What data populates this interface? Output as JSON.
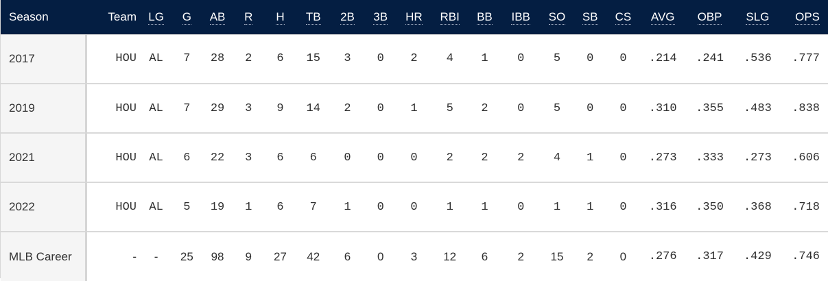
{
  "header": {
    "season": "Season",
    "team": "Team",
    "lg": "LG",
    "g": "G",
    "ab": "AB",
    "r": "R",
    "h": "H",
    "tb": "TB",
    "2b": "2B",
    "3b": "3B",
    "hr": "HR",
    "rbi": "RBI",
    "bb": "BB",
    "ibb": "IBB",
    "so": "SO",
    "sb": "SB",
    "cs": "CS",
    "avg": "AVG",
    "obp": "OBP",
    "slg": "SLG",
    "ops": "OPS"
  },
  "rows": [
    {
      "season": "2017",
      "team": "HOU",
      "lg": "AL",
      "g": "7",
      "ab": "28",
      "r": "2",
      "h": "6",
      "tb": "15",
      "2b": "3",
      "3b": "0",
      "hr": "2",
      "rbi": "4",
      "bb": "1",
      "ibb": "0",
      "so": "5",
      "sb": "0",
      "cs": "0",
      "avg": ".214",
      "obp": ".241",
      "slg": ".536",
      "ops": ".777"
    },
    {
      "season": "2019",
      "team": "HOU",
      "lg": "AL",
      "g": "7",
      "ab": "29",
      "r": "3",
      "h": "9",
      "tb": "14",
      "2b": "2",
      "3b": "0",
      "hr": "1",
      "rbi": "5",
      "bb": "2",
      "ibb": "0",
      "so": "5",
      "sb": "0",
      "cs": "0",
      "avg": ".310",
      "obp": ".355",
      "slg": ".483",
      "ops": ".838"
    },
    {
      "season": "2021",
      "team": "HOU",
      "lg": "AL",
      "g": "6",
      "ab": "22",
      "r": "3",
      "h": "6",
      "tb": "6",
      "2b": "0",
      "3b": "0",
      "hr": "0",
      "rbi": "2",
      "bb": "2",
      "ibb": "2",
      "so": "4",
      "sb": "1",
      "cs": "0",
      "avg": ".273",
      "obp": ".333",
      "slg": ".273",
      "ops": ".606"
    },
    {
      "season": "2022",
      "team": "HOU",
      "lg": "AL",
      "g": "5",
      "ab": "19",
      "r": "1",
      "h": "6",
      "tb": "7",
      "2b": "1",
      "3b": "0",
      "hr": "0",
      "rbi": "1",
      "bb": "1",
      "ibb": "0",
      "so": "1",
      "sb": "1",
      "cs": "0",
      "avg": ".316",
      "obp": ".350",
      "slg": ".368",
      "ops": ".718"
    },
    {
      "season": "MLB Career",
      "team": "-",
      "lg": "-",
      "g": "25",
      "ab": "98",
      "r": "9",
      "h": "27",
      "tb": "42",
      "2b": "6",
      "3b": "0",
      "hr": "3",
      "rbi": "12",
      "bb": "6",
      "ibb": "2",
      "so": "15",
      "sb": "2",
      "cs": "0",
      "avg": ".276",
      "obp": ".317",
      "slg": ".429",
      "ops": ".746"
    }
  ],
  "colors": {
    "header_bg": "#041e42",
    "header_text": "#ffffff",
    "season_col_bg": "#f5f5f5",
    "row_divider": "#d9d9d9"
  }
}
